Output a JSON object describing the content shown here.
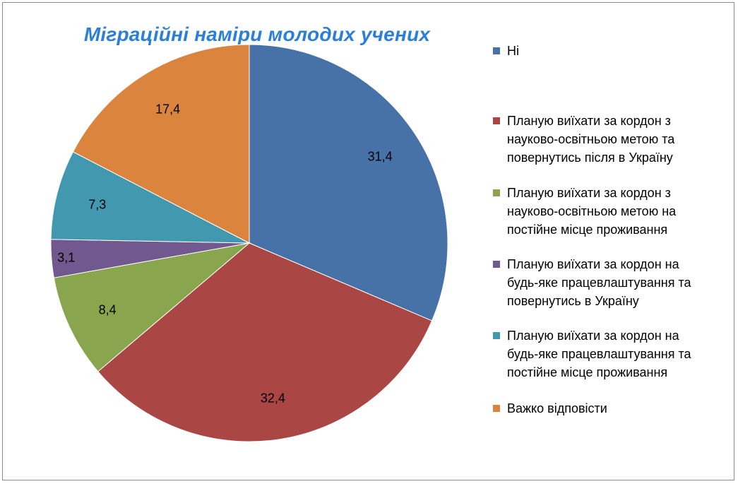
{
  "chart_data": {
    "type": "pie",
    "title": "Міграційні наміри молодих учених",
    "legend_position": "right",
    "categories": [
      "Ні",
      "Планую виїхати за кордон з науково-освітньою метою та повернутись після в Україну",
      "Планую виїхати за кордон з науково-освітньою метою на постійне місце проживання",
      "Планую виїхати за кордон на будь-яке працевлаштування та повернутись в Україну",
      "Планую виїхати за кордон на будь-яке працевлаштування та постійне місце проживання",
      "Важко відповісти"
    ],
    "legend_lines": [
      [
        "Ні"
      ],
      [
        "Планую виїхати за кордон з",
        "науково-освітньою метою та",
        "повернутись після в Україну"
      ],
      [
        "Планую виїхати за кордон з",
        "науково-освітньою метою на",
        "постійне місце проживання"
      ],
      [
        "Планую виїхати за кордон на",
        "будь-яке працевлаштування та",
        "повернутись в Україну"
      ],
      [
        "Планую виїхати за кордон на",
        "будь-яке працевлаштування та",
        "постійне місце проживання"
      ],
      [
        "Важко відповісти"
      ]
    ],
    "values": [
      31.4,
      32.4,
      8.4,
      3.1,
      7.3,
      17.4
    ],
    "data_labels": [
      "31,4",
      "32,4",
      "8,4",
      "3,1",
      "7,3",
      "17,4"
    ],
    "colors": [
      "#4672a8",
      "#aa4643",
      "#89a54e",
      "#71588f",
      "#4198af",
      "#db843d"
    ]
  }
}
